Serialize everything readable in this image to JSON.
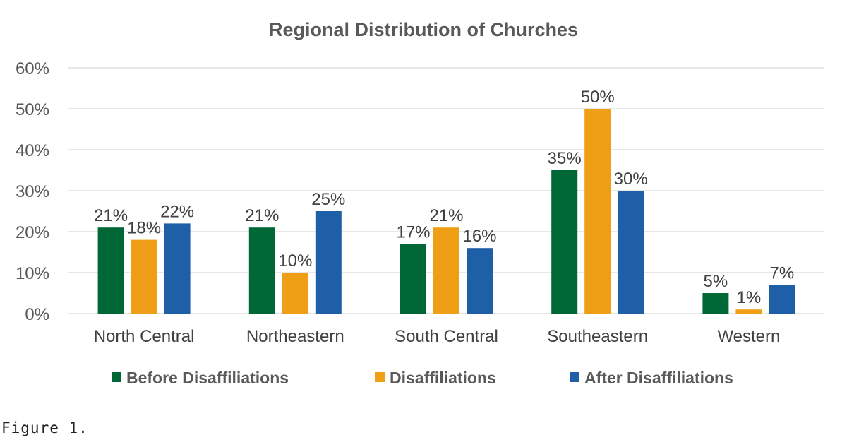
{
  "chart_data": {
    "type": "bar",
    "title": "Regional Distribution of Churches",
    "categories": [
      "North Central",
      "Northeastern",
      "South Central",
      "Southeastern",
      "Western"
    ],
    "series": [
      {
        "name": "Before Disaffiliations",
        "color": "#006837",
        "values": [
          21,
          21,
          17,
          35,
          5
        ]
      },
      {
        "name": "Disaffiliations",
        "color": "#EE9F16",
        "values": [
          18,
          10,
          21,
          50,
          1
        ]
      },
      {
        "name": "After Disaffiliations",
        "color": "#1F5FA8",
        "values": [
          22,
          25,
          16,
          30,
          7
        ]
      }
    ],
    "ylim": [
      0,
      60
    ],
    "yticks": [
      0,
      10,
      20,
      30,
      40,
      50,
      60
    ],
    "ytick_labels": [
      "0%",
      "10%",
      "20%",
      "30%",
      "40%",
      "50%",
      "60%"
    ],
    "data_labels": [
      [
        "21%",
        "21%",
        "17%",
        "35%",
        "5%"
      ],
      [
        "18%",
        "10%",
        "21%",
        "50%",
        "1%"
      ],
      [
        "22%",
        "25%",
        "16%",
        "30%",
        "7%"
      ]
    ],
    "grid": true,
    "legend": "bottom",
    "xlabel": "",
    "ylabel": ""
  },
  "caption": "Figure 1."
}
